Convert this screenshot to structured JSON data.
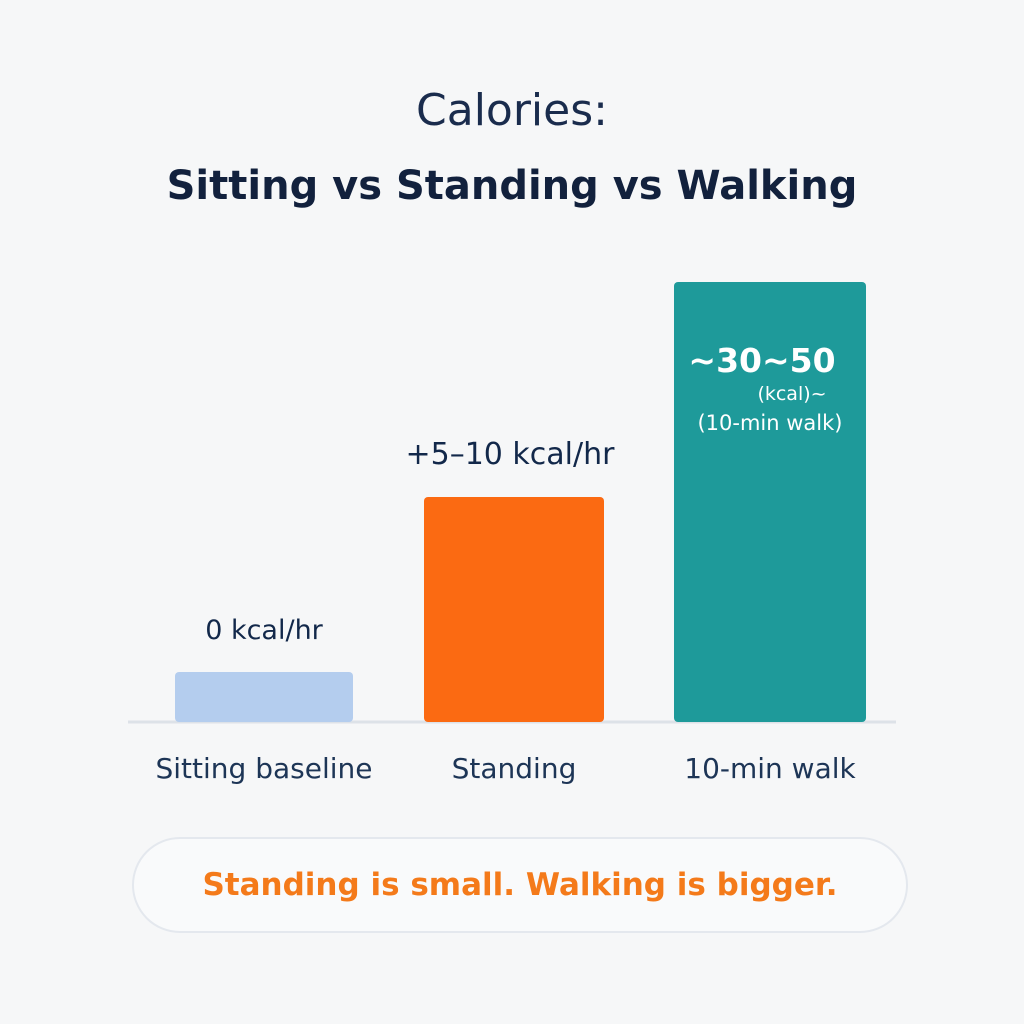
{
  "title_line1": "Calories:",
  "title_line2": "Sitting vs Standing vs Walking",
  "chart_data": {
    "type": "bar",
    "categories": [
      "Sitting baseline",
      "Standing",
      "10-min walk"
    ],
    "value_labels": [
      "0 kcal/hr",
      "+5–10 kcal/hr",
      "~30~50"
    ],
    "value_sublabels": [
      "",
      "",
      "(kcal)~"
    ],
    "value_sublabels2": [
      "",
      "",
      "(10-min walk)"
    ],
    "values": [
      0,
      7.5,
      40
    ],
    "colors": [
      "#b4cdee",
      "#fb6a12",
      "#1e9a9a"
    ],
    "grid": false,
    "axes_visible": false
  },
  "footer_note": "Standing is small. Walking is bigger."
}
